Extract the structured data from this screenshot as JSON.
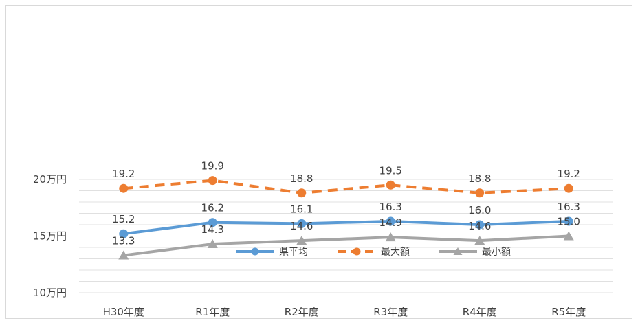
{
  "chart_data": {
    "type": "line",
    "title": "",
    "xlabel": "",
    "ylabel": "",
    "categories": [
      "H30年度",
      "R1年度",
      "R2年度",
      "R3年度",
      "R4年度",
      "R5年度"
    ],
    "y_ticks": [
      {
        "value": 10,
        "label": "10万円"
      },
      {
        "value": 15,
        "label": "15万円"
      },
      {
        "value": 20,
        "label": "20万円"
      }
    ],
    "ylim": [
      10,
      21
    ],
    "grid": true,
    "grid_step": 1,
    "legend_position": "inside-lower-center",
    "series": [
      {
        "name": "県平均",
        "values": [
          15.2,
          16.2,
          16.1,
          16.3,
          16.0,
          16.3
        ],
        "labels": [
          "15.2",
          "16.2",
          "16.1",
          "16.3",
          "16.0",
          "16.3"
        ],
        "color": "#5b9bd5",
        "dash": "solid",
        "marker": "circle",
        "label_pos": "above"
      },
      {
        "name": "最大額",
        "values": [
          19.2,
          19.9,
          18.8,
          19.5,
          18.8,
          19.2
        ],
        "labels": [
          "19.2",
          "19.9",
          "18.8",
          "19.5",
          "18.8",
          "19.2"
        ],
        "color": "#ed7d31",
        "dash": "dashed",
        "marker": "circle",
        "label_pos": "above"
      },
      {
        "name": "最小額",
        "values": [
          13.3,
          14.3,
          14.6,
          14.9,
          14.6,
          15.0
        ],
        "labels": [
          "13.3",
          "14.3",
          "14.6",
          "14.9",
          "14.6",
          "15.0"
        ],
        "color": "#a5a5a5",
        "dash": "solid",
        "marker": "triangle",
        "label_pos": "above"
      }
    ]
  }
}
